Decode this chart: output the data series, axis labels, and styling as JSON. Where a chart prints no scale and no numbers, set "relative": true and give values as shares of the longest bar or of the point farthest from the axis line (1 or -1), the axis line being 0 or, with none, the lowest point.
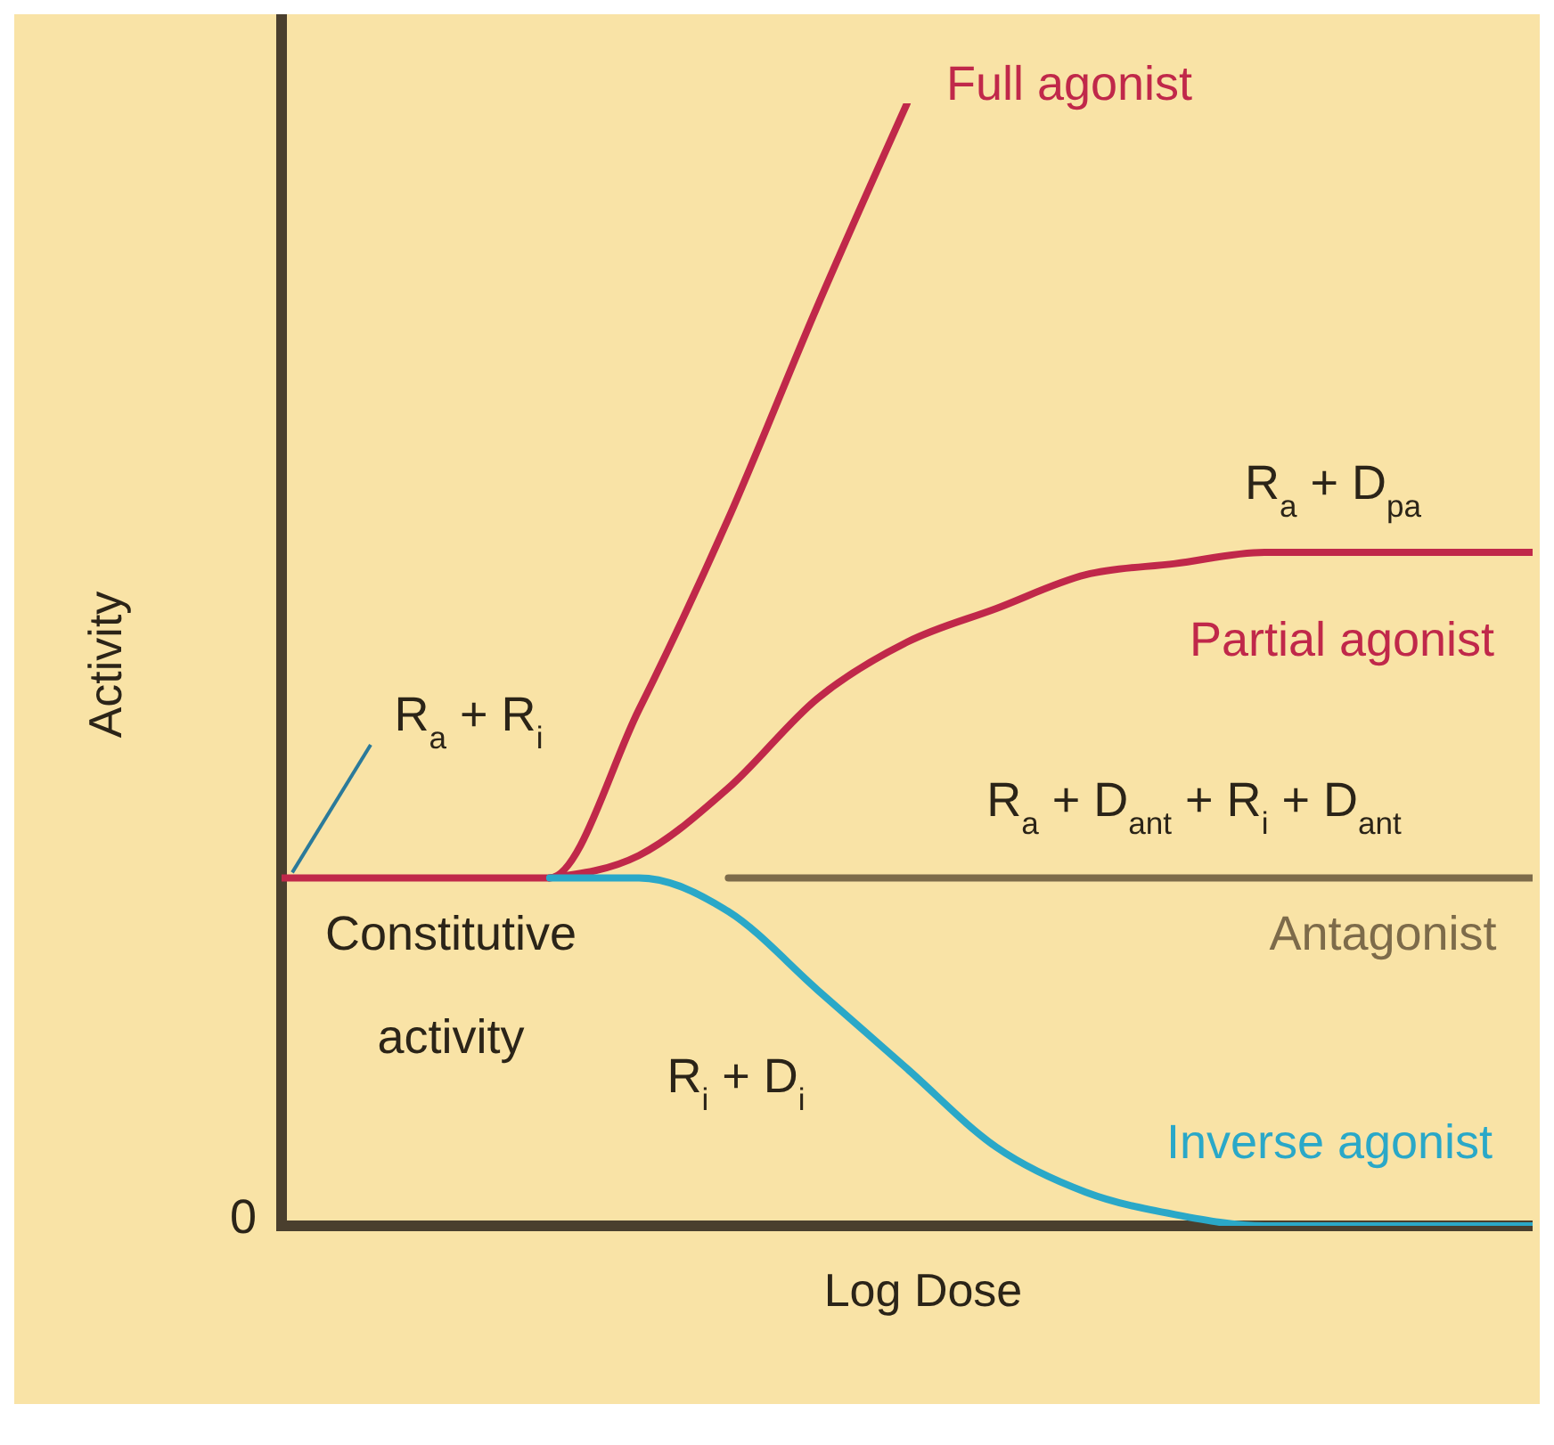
{
  "chart_data": {
    "type": "line",
    "relative": true,
    "xlabel": "Log Dose",
    "ylabel": "Activity",
    "categories": [
      null,
      null,
      null,
      null,
      null,
      null,
      null,
      null,
      null,
      null,
      null,
      null,
      null,
      null,
      null
    ],
    "series": [
      {
        "name": "Full agonist",
        "color": "#c0284a",
        "values": [
          0.31,
          0.31,
          0.31,
          0.31,
          0.46,
          0.63,
          0.82,
          1,
          null,
          null,
          null,
          null,
          null,
          null,
          null
        ]
      },
      {
        "name": "Partial agonist",
        "color": "#c0284a",
        "values": [
          null,
          null,
          null,
          0.31,
          0.33,
          0.39,
          0.47,
          0.52,
          0.55,
          0.58,
          0.59,
          0.6,
          0.6,
          0.6,
          0.6
        ]
      },
      {
        "name": "Antagonist",
        "color": "#7d6b4a",
        "values": [
          null,
          null,
          null,
          null,
          null,
          0.31,
          0.31,
          0.31,
          0.31,
          0.31,
          0.31,
          0.31,
          0.31,
          0.31,
          0.31
        ]
      },
      {
        "name": "Inverse agonist",
        "color": "#2aa8c8",
        "values": [
          null,
          null,
          null,
          0.31,
          0.31,
          0.28,
          0.21,
          0.14,
          0.07,
          0.03,
          0.01,
          0,
          0,
          0,
          0
        ]
      }
    ],
    "annotations": [
      "R$_{a}$ + D$_{pa}$",
      "R$_{a}$ + D$_{ant}$ + R$_{i}$ + D$_{ant}$",
      "R$_{a}$ + R$_{i}$",
      "Constitutive activity",
      "R$_{i}$ + D$_{i}$",
      "0"
    ],
    "grid": false,
    "marker": "none",
    "line_style": "solid"
  }
}
